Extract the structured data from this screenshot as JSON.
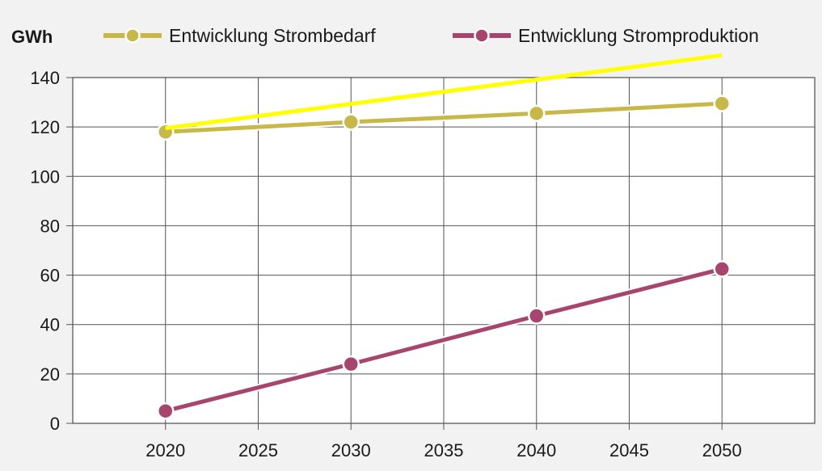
{
  "chart_data": {
    "type": "line",
    "ylabel": "GWh",
    "ylim": [
      0,
      140
    ],
    "yticks": [
      0,
      20,
      40,
      60,
      80,
      100,
      120,
      140
    ],
    "xlim": [
      2015,
      2055
    ],
    "xticks": [
      2020,
      2025,
      2030,
      2035,
      2040,
      2045,
      2050
    ],
    "grid": true,
    "legend_position": "top",
    "series": [
      {
        "name": "Entwicklung Strombedarf",
        "color": "#c8b84a",
        "x": [
          2020,
          2030,
          2040,
          2050
        ],
        "values": [
          118,
          122,
          125.5,
          129.5
        ]
      },
      {
        "name": "Entwicklung Stromproduktion",
        "color": "#a8456e",
        "x": [
          2020,
          2030,
          2040,
          2050
        ],
        "values": [
          5,
          24,
          43.5,
          62.5
        ]
      }
    ],
    "annotations": [
      {
        "type": "trend-line",
        "color": "#ffff00",
        "x": [
          2020,
          2050
        ],
        "y": [
          119.5,
          149
        ]
      }
    ]
  }
}
